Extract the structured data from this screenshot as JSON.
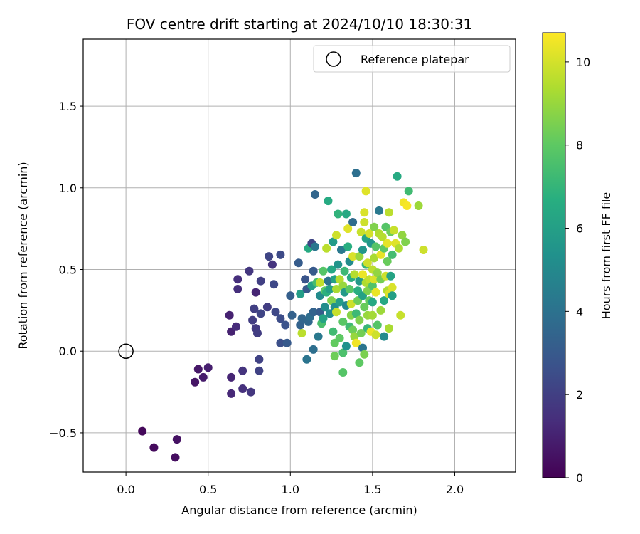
{
  "chart_data": {
    "type": "scatter",
    "title": "FOV centre drift starting at 2024/10/10 18:30:31",
    "xlabel": "Angular distance from reference (arcmin)",
    "ylabel": "Rotation from reference (arcmin)",
    "xlim": [
      -0.26,
      2.37
    ],
    "ylim": [
      -0.74,
      1.91
    ],
    "xticks": [
      0.0,
      0.5,
      1.0,
      1.5,
      2.0
    ],
    "xtick_labels": [
      "0.0",
      "0.5",
      "1.0",
      "1.5",
      "2.0"
    ],
    "yticks": [
      -0.5,
      0.0,
      0.5,
      1.0,
      1.5
    ],
    "ytick_labels": [
      "−0.5",
      "0.0",
      "0.5",
      "1.0",
      "1.5"
    ],
    "grid": true,
    "legend": {
      "label": "Reference platepar",
      "location": "top-right"
    },
    "reference_point": {
      "x": 0.0,
      "y": 0.0
    },
    "colorbar": {
      "label": "Hours from first FF file",
      "range": [
        0,
        10.7
      ],
      "ticks": [
        0,
        2,
        4,
        6,
        8,
        10
      ],
      "tick_labels": [
        "0",
        "2",
        "4",
        "6",
        "8",
        "10"
      ],
      "colormap": "viridis"
    },
    "points": [
      [
        0.1,
        -0.49,
        0.2
      ],
      [
        0.17,
        -0.59,
        0.3
      ],
      [
        0.3,
        -0.65,
        0.4
      ],
      [
        0.31,
        -0.54,
        0.5
      ],
      [
        0.42,
        -0.19,
        0.6
      ],
      [
        0.44,
        -0.11,
        0.7
      ],
      [
        0.47,
        -0.16,
        0.8
      ],
      [
        0.5,
        -0.1,
        0.9
      ],
      [
        0.63,
        0.22,
        1.0
      ],
      [
        0.64,
        0.12,
        1.0
      ],
      [
        0.64,
        -0.16,
        1.1
      ],
      [
        0.64,
        -0.26,
        1.2
      ],
      [
        0.67,
        0.15,
        1.3
      ],
      [
        0.68,
        0.38,
        1.4
      ],
      [
        0.68,
        0.44,
        1.4
      ],
      [
        0.71,
        -0.12,
        1.6
      ],
      [
        0.71,
        -0.23,
        1.5
      ],
      [
        0.75,
        0.49,
        1.7
      ],
      [
        0.76,
        -0.25,
        1.7
      ],
      [
        0.77,
        0.19,
        1.9
      ],
      [
        0.78,
        0.26,
        2.0
      ],
      [
        0.79,
        0.36,
        1.1
      ],
      [
        0.79,
        0.14,
        1.8
      ],
      [
        0.8,
        0.11,
        1.9
      ],
      [
        0.81,
        -0.12,
        2.1
      ],
      [
        0.81,
        -0.05,
        2.1
      ],
      [
        0.82,
        0.23,
        2.2
      ],
      [
        0.82,
        0.43,
        2.0
      ],
      [
        0.86,
        0.27,
        1.9
      ],
      [
        0.87,
        0.58,
        2.2
      ],
      [
        0.89,
        0.53,
        1.6
      ],
      [
        0.9,
        0.41,
        2.3
      ],
      [
        0.91,
        0.24,
        2.3
      ],
      [
        0.94,
        0.59,
        2.4
      ],
      [
        0.94,
        0.2,
        2.5
      ],
      [
        0.94,
        0.05,
        2.6
      ],
      [
        0.97,
        0.16,
        2.7
      ],
      [
        0.98,
        0.05,
        3.0
      ],
      [
        1.0,
        0.34,
        3.2
      ],
      [
        1.01,
        0.22,
        3.3
      ],
      [
        1.05,
        0.54,
        3.1
      ],
      [
        1.06,
        0.16,
        3.4
      ],
      [
        1.06,
        0.35,
        5.9
      ],
      [
        1.07,
        0.11,
        9.6
      ],
      [
        1.07,
        0.2,
        3.5
      ],
      [
        1.09,
        0.44,
        2.8
      ],
      [
        1.1,
        0.38,
        3.0
      ],
      [
        1.1,
        -0.05,
        4.1
      ],
      [
        1.11,
        0.63,
        6.5
      ],
      [
        1.11,
        0.18,
        3.6
      ],
      [
        1.12,
        0.21,
        3.8
      ],
      [
        1.13,
        0.66,
        2.2
      ],
      [
        1.13,
        0.4,
        6.0
      ],
      [
        1.14,
        0.24,
        3.4
      ],
      [
        1.14,
        0.49,
        3.0
      ],
      [
        1.14,
        0.01,
        3.9
      ],
      [
        1.15,
        0.64,
        4.2
      ],
      [
        1.15,
        0.96,
        3.5
      ],
      [
        1.16,
        0.42,
        7.4
      ],
      [
        1.17,
        0.09,
        4.3
      ],
      [
        1.18,
        0.34,
        5.1
      ],
      [
        1.18,
        0.24,
        3.1
      ],
      [
        1.18,
        0.42,
        9.7
      ],
      [
        1.19,
        0.17,
        7.5
      ],
      [
        1.2,
        0.2,
        6.2
      ],
      [
        1.2,
        0.49,
        7.8
      ],
      [
        1.21,
        0.37,
        8.0
      ],
      [
        1.21,
        0.27,
        5.2
      ],
      [
        1.22,
        0.63,
        9.6
      ],
      [
        1.22,
        0.36,
        6.8
      ],
      [
        1.23,
        0.92,
        6.5
      ],
      [
        1.23,
        0.43,
        4.0
      ],
      [
        1.24,
        0.38,
        6.0
      ],
      [
        1.24,
        0.23,
        5.2
      ],
      [
        1.25,
        0.31,
        8.6
      ],
      [
        1.25,
        0.5,
        6.4
      ],
      [
        1.26,
        0.67,
        5.8
      ],
      [
        1.26,
        0.12,
        7.3
      ],
      [
        1.27,
        0.27,
        5.3
      ],
      [
        1.27,
        0.44,
        6.1
      ],
      [
        1.27,
        -0.03,
        8.3
      ],
      [
        1.27,
        0.05,
        8.1
      ],
      [
        1.28,
        0.71,
        9.9
      ],
      [
        1.28,
        0.24,
        9.8
      ],
      [
        1.28,
        0.38,
        9.3
      ],
      [
        1.29,
        0.84,
        6.9
      ],
      [
        1.29,
        0.53,
        5.5
      ],
      [
        1.3,
        0.08,
        8.0
      ],
      [
        1.3,
        0.3,
        5.9
      ],
      [
        1.3,
        0.44,
        9.5
      ],
      [
        1.31,
        0.62,
        4.3
      ],
      [
        1.32,
        0.4,
        9.0
      ],
      [
        1.32,
        0.18,
        7.9
      ],
      [
        1.32,
        -0.13,
        7.8
      ],
      [
        1.32,
        -0.01,
        7.6
      ],
      [
        1.33,
        0.36,
        5.7
      ],
      [
        1.33,
        0.49,
        7.2
      ],
      [
        1.34,
        0.84,
        6.4
      ],
      [
        1.34,
        0.28,
        5.0
      ],
      [
        1.34,
        0.03,
        5.4
      ],
      [
        1.35,
        0.64,
        6.7
      ],
      [
        1.35,
        0.75,
        10.2
      ],
      [
        1.36,
        0.55,
        5.1
      ],
      [
        1.36,
        0.15,
        7.3
      ],
      [
        1.36,
        0.38,
        7.9
      ],
      [
        1.37,
        0.45,
        6.6
      ],
      [
        1.37,
        0.22,
        8.7
      ],
      [
        1.37,
        0.29,
        9.9
      ],
      [
        1.38,
        0.58,
        10.1
      ],
      [
        1.38,
        0.79,
        3.7
      ],
      [
        1.38,
        0.13,
        8.3
      ],
      [
        1.39,
        0.09,
        9.0
      ],
      [
        1.39,
        0.47,
        9.5
      ],
      [
        1.4,
        1.09,
        3.9
      ],
      [
        1.4,
        0.05,
        10.5
      ],
      [
        1.4,
        0.23,
        7.2
      ],
      [
        1.41,
        0.37,
        6.7
      ],
      [
        1.41,
        0.31,
        8.3
      ],
      [
        1.42,
        0.43,
        5.7
      ],
      [
        1.42,
        -0.07,
        8.0
      ],
      [
        1.42,
        0.19,
        8.6
      ],
      [
        1.42,
        0.58,
        9.0
      ],
      [
        1.43,
        0.73,
        9.8
      ],
      [
        1.43,
        0.11,
        8.4
      ],
      [
        1.44,
        0.47,
        10.4
      ],
      [
        1.44,
        0.02,
        4.1
      ],
      [
        1.44,
        0.34,
        6.1
      ],
      [
        1.44,
        0.62,
        5.6
      ],
      [
        1.45,
        0.79,
        9.9
      ],
      [
        1.45,
        -0.02,
        8.5
      ],
      [
        1.45,
        0.27,
        8.2
      ],
      [
        1.45,
        0.85,
        10.1
      ],
      [
        1.46,
        0.98,
        10.2
      ],
      [
        1.46,
        0.53,
        7.0
      ],
      [
        1.46,
        0.42,
        9.4
      ],
      [
        1.46,
        0.69,
        6.2
      ],
      [
        1.47,
        0.14,
        7.1
      ],
      [
        1.47,
        0.37,
        8.6
      ],
      [
        1.47,
        0.22,
        9.0
      ],
      [
        1.47,
        0.54,
        9.9
      ],
      [
        1.48,
        0.72,
        10.0
      ],
      [
        1.48,
        0.44,
        9.7
      ],
      [
        1.48,
        0.31,
        8.1
      ],
      [
        1.49,
        0.66,
        5.6
      ],
      [
        1.49,
        0.12,
        10.4
      ],
      [
        1.5,
        0.5,
        9.6
      ],
      [
        1.5,
        0.4,
        7.7
      ],
      [
        1.5,
        0.22,
        9.2
      ],
      [
        1.5,
        0.3,
        6.4
      ],
      [
        1.51,
        0.76,
        8.6
      ],
      [
        1.51,
        0.57,
        9.3
      ],
      [
        1.51,
        0.44,
        10.1
      ],
      [
        1.52,
        0.1,
        9.9
      ],
      [
        1.52,
        0.36,
        10.4
      ],
      [
        1.52,
        0.64,
        7.8
      ],
      [
        1.53,
        0.48,
        8.9
      ],
      [
        1.53,
        0.16,
        7.8
      ],
      [
        1.54,
        0.86,
        4.3
      ],
      [
        1.54,
        0.72,
        9.4
      ],
      [
        1.55,
        0.59,
        10.3
      ],
      [
        1.55,
        0.44,
        8.4
      ],
      [
        1.55,
        0.25,
        9.1
      ],
      [
        1.56,
        0.7,
        9.5
      ],
      [
        1.57,
        0.63,
        8.0
      ],
      [
        1.57,
        0.31,
        6.4
      ],
      [
        1.57,
        0.09,
        5.1
      ],
      [
        1.58,
        0.46,
        9.9
      ],
      [
        1.58,
        0.76,
        7.8
      ],
      [
        1.59,
        0.66,
        10.3
      ],
      [
        1.59,
        0.55,
        8.2
      ],
      [
        1.59,
        0.37,
        9.4
      ],
      [
        1.6,
        0.85,
        9.6
      ],
      [
        1.6,
        0.35,
        10.1
      ],
      [
        1.6,
        0.14,
        9.3
      ],
      [
        1.61,
        0.73,
        8.3
      ],
      [
        1.61,
        0.46,
        6.2
      ],
      [
        1.62,
        0.59,
        7.4
      ],
      [
        1.62,
        0.39,
        10.1
      ],
      [
        1.62,
        0.34,
        6.0
      ],
      [
        1.63,
        0.74,
        9.8
      ],
      [
        1.64,
        0.66,
        10.2
      ],
      [
        1.65,
        1.07,
        6.5
      ],
      [
        1.66,
        0.63,
        9.4
      ],
      [
        1.67,
        0.22,
        9.8
      ],
      [
        1.68,
        0.71,
        8.9
      ],
      [
        1.69,
        0.91,
        10.5
      ],
      [
        1.7,
        0.67,
        8.6
      ],
      [
        1.71,
        0.89,
        10.6
      ],
      [
        1.72,
        0.98,
        7.3
      ],
      [
        1.78,
        0.89,
        9.1
      ],
      [
        1.81,
        0.62,
        9.9
      ]
    ]
  }
}
